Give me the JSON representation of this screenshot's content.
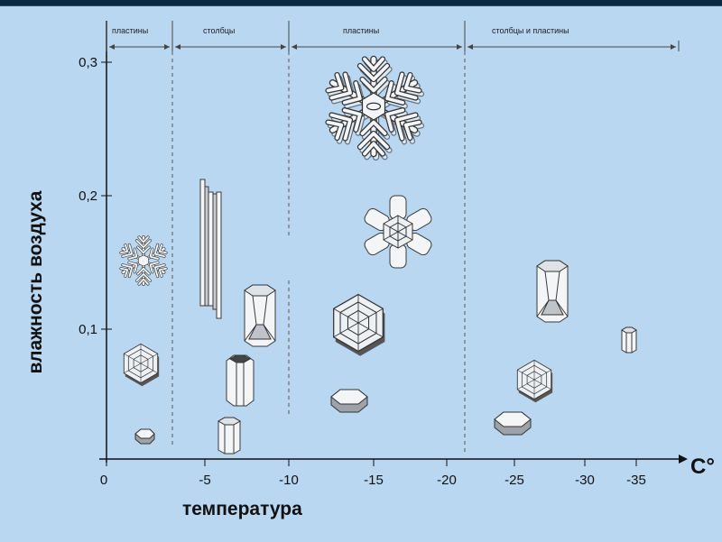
{
  "zones": [
    {
      "label": "пластины"
    },
    {
      "label": "столбцы"
    },
    {
      "label": "пластины"
    },
    {
      "label": "столбцы и пластины"
    }
  ],
  "x_axis": {
    "title": "температура",
    "unit": "С°",
    "ticks": [
      "0",
      "-5",
      "-10",
      "-15",
      "-20",
      "-25",
      "-30",
      "-35"
    ]
  },
  "y_axis": {
    "title": "влажность воздуха",
    "ticks": [
      "0,1",
      "0,2",
      "0,3"
    ]
  },
  "crystal_types": [
    "dendrite-snowflake-small",
    "hexagonal-plate-patterned",
    "hexagonal-plate-small",
    "needle-columns",
    "hollow-column",
    "hexagonal-column",
    "short-column",
    "dendrite-snowflake-large",
    "sectored-plate",
    "hexagonal-plate-patterned",
    "hexagonal-plate",
    "hollow-column",
    "hexagonal-plate-patterned",
    "hexagonal-plate",
    "short-column"
  ]
}
